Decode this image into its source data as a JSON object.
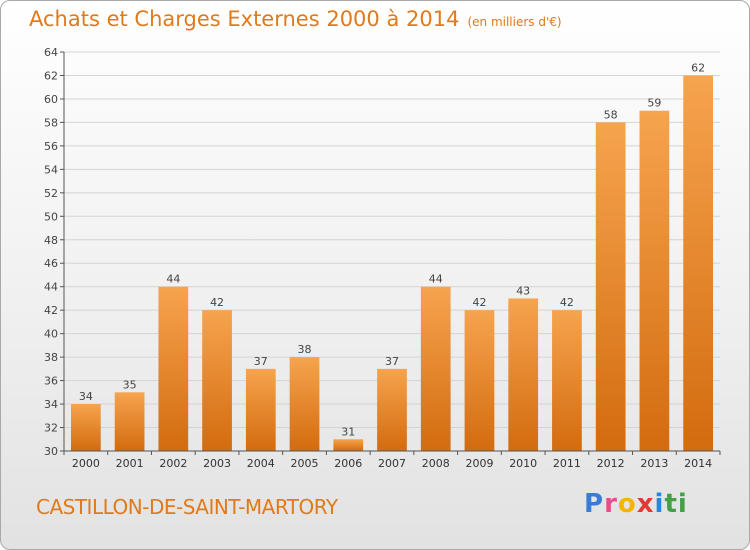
{
  "header": {
    "title": "Achats et Charges Externes 2000 à 2014",
    "unit": "(en milliers d'€)"
  },
  "footer": {
    "town": "CASTILLON-DE-SAINT-MARTORY",
    "logo_letters": [
      "P",
      "r",
      "o",
      "x",
      "i",
      "t",
      "i"
    ],
    "logo_colors": [
      "#3a7bd5",
      "#e94e8a",
      "#f4b400",
      "#e53935",
      "#1e88e5",
      "#43a047",
      "#43a047"
    ]
  },
  "colors": {
    "bar_light": "#f6a44e",
    "bar_dark": "#d36b0f",
    "title": "#e07a1a"
  },
  "chart_data": {
    "type": "bar",
    "categories": [
      "2000",
      "2001",
      "2002",
      "2003",
      "2004",
      "2005",
      "2006",
      "2007",
      "2008",
      "2009",
      "2010",
      "2011",
      "2012",
      "2013",
      "2014"
    ],
    "values": [
      34,
      35,
      44,
      42,
      37,
      38,
      31,
      37,
      44,
      42,
      43,
      42,
      58,
      59,
      62
    ],
    "ylim": [
      30,
      64
    ],
    "yticks": [
      30,
      32,
      34,
      36,
      38,
      40,
      42,
      44,
      46,
      48,
      50,
      52,
      54,
      56,
      58,
      60,
      62,
      64
    ],
    "grid": true
  }
}
